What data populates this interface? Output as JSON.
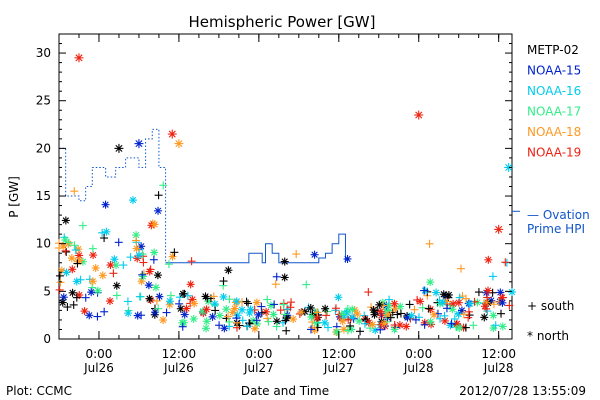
{
  "chart_data": {
    "type": "scatter",
    "title": "Hemispheric Power [GW]",
    "ylabel": "P [GW]",
    "xlabel": "Date and Time",
    "ylim": [
      0,
      32
    ],
    "yticks": [
      0,
      5,
      10,
      15,
      20,
      25,
      30
    ],
    "xlim": [
      "2012-07-25T18:00",
      "2012-07-28T14:00"
    ],
    "xticks": [
      {
        "t": "2012-07-26T00:00",
        "time": "0:00",
        "date": "Jul26"
      },
      {
        "t": "2012-07-26T12:00",
        "time": "12:00",
        "date": "Jul26"
      },
      {
        "t": "2012-07-27T00:00",
        "time": "0:00",
        "date": "Jul27"
      },
      {
        "t": "2012-07-27T12:00",
        "time": "12:00",
        "date": "Jul27"
      },
      {
        "t": "2012-07-28T00:00",
        "time": "0:00",
        "date": "Jul28"
      },
      {
        "t": "2012-07-28T12:00",
        "time": "12:00",
        "date": "Jul28"
      }
    ],
    "legend": [
      {
        "label": "METP-02",
        "color": "#000000"
      },
      {
        "label": "NOAA-15",
        "color": "#0022cc"
      },
      {
        "label": "NOAA-16",
        "color": "#00ccee"
      },
      {
        "label": "NOAA-17",
        "color": "#33ee88"
      },
      {
        "label": "NOAA-18",
        "color": "#ff9922"
      },
      {
        "label": "NOAA-19",
        "color": "#ee2211"
      }
    ],
    "marker_legend": [
      {
        "symbol": "+",
        "label": "south"
      },
      {
        "symbol": "*",
        "label": "north"
      }
    ],
    "ovation": {
      "label_line1": "— Ovation",
      "label_line2": "Prime HPI",
      "color": "#1155cc",
      "current_value": 13.4,
      "dotted_profile": [
        [
          "2012-07-25T18:00",
          20
        ],
        [
          "2012-07-25T19:00",
          15
        ],
        [
          "2012-07-25T21:00",
          14.5
        ],
        [
          "2012-07-25T22:00",
          16
        ],
        [
          "2012-07-25T23:00",
          18
        ],
        [
          "2012-07-26T01:00",
          17
        ],
        [
          "2012-07-26T02:30",
          18
        ],
        [
          "2012-07-26T04:00",
          19
        ],
        [
          "2012-07-26T06:00",
          18
        ],
        [
          "2012-07-26T07:00",
          21
        ],
        [
          "2012-07-26T08:00",
          22
        ],
        [
          "2012-07-26T09:00",
          18
        ],
        [
          "2012-07-26T10:00",
          8
        ]
      ],
      "step_profile": [
        [
          "2012-07-26T10:00",
          8
        ],
        [
          "2012-07-26T22:00",
          8
        ],
        [
          "2012-07-26T22:30",
          9
        ],
        [
          "2012-07-27T00:30",
          8
        ],
        [
          "2012-07-27T01:00",
          10
        ],
        [
          "2012-07-27T02:00",
          9
        ],
        [
          "2012-07-27T03:00",
          8
        ],
        [
          "2012-07-27T09:00",
          8.5
        ],
        [
          "2012-07-27T10:00",
          9
        ],
        [
          "2012-07-27T11:00",
          10
        ],
        [
          "2012-07-27T12:00",
          11
        ],
        [
          "2012-07-27T13:00",
          8
        ]
      ]
    },
    "highlighted_points": [
      {
        "sat": "NOAA-19",
        "t": "2012-07-25T21:00",
        "v": 29.5,
        "marker": "*"
      },
      {
        "sat": "NOAA-15",
        "t": "2012-07-26T06:00",
        "v": 20.5,
        "marker": "*"
      },
      {
        "sat": "METP-02",
        "t": "2012-07-26T03:00",
        "v": 20,
        "marker": "*"
      },
      {
        "sat": "NOAA-19",
        "t": "2012-07-26T11:00",
        "v": 21.5,
        "marker": "*"
      },
      {
        "sat": "NOAA-18",
        "t": "2012-07-26T12:00",
        "v": 20.5,
        "marker": "*"
      },
      {
        "sat": "NOAA-19",
        "t": "2012-07-28T00:00",
        "v": 23.5,
        "marker": "*"
      },
      {
        "sat": "NOAA-16",
        "t": "2012-07-28T13:30",
        "v": 18,
        "marker": "*"
      },
      {
        "sat": "NOAA-19",
        "t": "2012-07-28T12:00",
        "v": 11.5,
        "marker": "*"
      }
    ]
  },
  "footer": {
    "left": "Plot: CCMC",
    "center": "Date and Time",
    "right": "2012/07/28 13:55:09"
  }
}
